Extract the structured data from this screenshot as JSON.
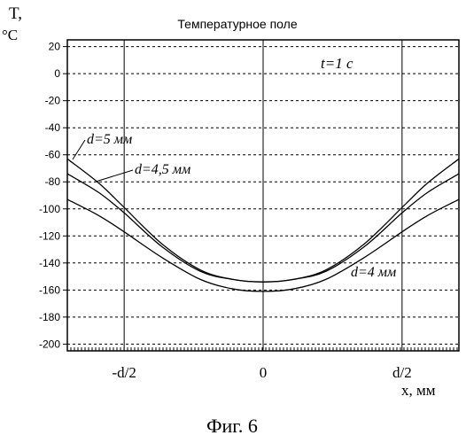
{
  "chart_data": {
    "type": "line",
    "title": "Температурное поле",
    "ylabel_line1": "T,",
    "ylabel_line2": "°C",
    "xlabel": "x, мм",
    "ylim": [
      -205,
      25
    ],
    "xlim": [
      -3.1,
      3.1
    ],
    "y_ticks": [
      20,
      0,
      -20,
      -40,
      -60,
      -80,
      -100,
      -120,
      -140,
      -160,
      -180,
      -200
    ],
    "x_ticks": [
      {
        "label": "-d/2",
        "x": -2.2
      },
      {
        "label": "0",
        "x": 0
      },
      {
        "label": "d/2",
        "x": 2.2
      }
    ],
    "grid": "horizontal-dashed",
    "annotation_time": "t=1 c",
    "series": [
      {
        "name": "d=5 мм",
        "x": [
          -3.1,
          -2.6,
          -2.2,
          -1.6,
          -1.0,
          -0.5,
          0,
          0.5,
          1.0,
          1.6,
          2.2,
          2.6,
          3.1
        ],
        "y": [
          -63,
          -81,
          -99,
          -126,
          -145,
          -152,
          -154,
          -152,
          -145,
          -126,
          -99,
          -81,
          -63
        ]
      },
      {
        "name": "d=4,5 мм",
        "x": [
          -3.1,
          -2.6,
          -2.2,
          -1.6,
          -1.0,
          -0.5,
          0,
          0.5,
          1.0,
          1.6,
          2.2,
          2.6,
          3.1
        ],
        "y": [
          -74,
          -88,
          -103,
          -128,
          -146,
          -152,
          -154,
          -152,
          -146,
          -128,
          -103,
          -88,
          -74
        ]
      },
      {
        "name": "d=4 мм",
        "x": [
          -3.1,
          -2.6,
          -2.2,
          -1.6,
          -1.0,
          -0.5,
          0,
          0.5,
          1.0,
          1.6,
          2.2,
          2.6,
          3.1
        ],
        "y": [
          -93,
          -105,
          -117,
          -136,
          -152,
          -159,
          -161,
          -159,
          -152,
          -136,
          -117,
          -105,
          -93
        ]
      }
    ]
  },
  "caption": "Фиг. 6"
}
